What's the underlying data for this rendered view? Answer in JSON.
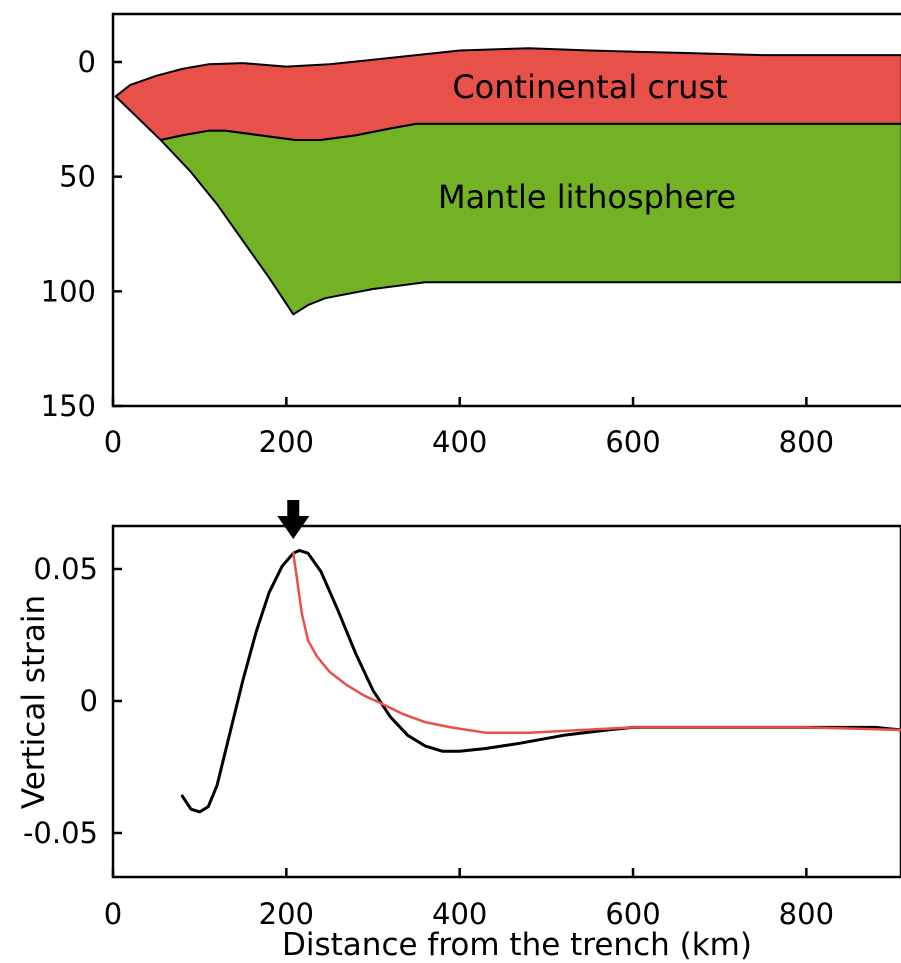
{
  "colors": {
    "crust": "#E8504A",
    "mantle": "#74B225",
    "black_curve": "#000000",
    "red_curve": "#E8504A",
    "axis": "#000000",
    "arrow": "#000000"
  },
  "chart_data": [
    {
      "type": "area",
      "xlabel": "",
      "ylabel": "",
      "xlim": [
        0,
        910
      ],
      "ylim": [
        150,
        -20
      ],
      "y_inverted": true,
      "x_ticks": [
        "0",
        "200",
        "400",
        "600",
        "800"
      ],
      "x_tick_values": [
        0,
        200,
        400,
        600,
        800
      ],
      "y_ticks": [
        "0",
        "50",
        "100",
        "150"
      ],
      "y_tick_values": [
        0,
        50,
        100,
        150
      ],
      "grid": false,
      "regions": [
        {
          "name": "Continental crust",
          "color_key": "crust",
          "top": [
            [
              3,
              15
            ],
            [
              20,
              10
            ],
            [
              50,
              6
            ],
            [
              80,
              3
            ],
            [
              110,
              1
            ],
            [
              150,
              0.5
            ],
            [
              200,
              2
            ],
            [
              250,
              1
            ],
            [
              300,
              -1
            ],
            [
              350,
              -3
            ],
            [
              400,
              -5
            ],
            [
              480,
              -6
            ],
            [
              550,
              -5
            ],
            [
              650,
              -4
            ],
            [
              750,
              -3
            ],
            [
              910,
              -3
            ]
          ],
          "bottom": [
            [
              910,
              27
            ],
            [
              800,
              27
            ],
            [
              600,
              27
            ],
            [
              400,
              27
            ],
            [
              350,
              27
            ],
            [
              320,
              29
            ],
            [
              280,
              32
            ],
            [
              240,
              34
            ],
            [
              210,
              34
            ],
            [
              170,
              32
            ],
            [
              130,
              30
            ],
            [
              110,
              30
            ],
            [
              80,
              32
            ],
            [
              55,
              34
            ],
            [
              3,
              15
            ]
          ]
        },
        {
          "name": "Mantle lithosphere",
          "color_key": "mantle",
          "top": [
            [
              55,
              34
            ],
            [
              80,
              32
            ],
            [
              110,
              30
            ],
            [
              130,
              30
            ],
            [
              170,
              32
            ],
            [
              210,
              34
            ],
            [
              240,
              34
            ],
            [
              280,
              32
            ],
            [
              320,
              29
            ],
            [
              350,
              27
            ],
            [
              400,
              27
            ],
            [
              600,
              27
            ],
            [
              800,
              27
            ],
            [
              910,
              27
            ]
          ],
          "bottom": [
            [
              910,
              96
            ],
            [
              700,
              96
            ],
            [
              500,
              96
            ],
            [
              360,
              96
            ],
            [
              300,
              99
            ],
            [
              245,
              103
            ],
            [
              225,
              106
            ],
            [
              208,
              110
            ],
            [
              180,
              94
            ],
            [
              150,
              78
            ],
            [
              120,
              62
            ],
            [
              90,
              48
            ],
            [
              55,
              34
            ]
          ]
        }
      ],
      "annotations": [
        "Continental crust",
        "Mantle lithosphere"
      ]
    },
    {
      "type": "line",
      "xlabel": "Distance from the trench (km)",
      "ylabel": "Vertical strain",
      "xlim": [
        0,
        910
      ],
      "ylim": [
        -0.066,
        0.067
      ],
      "x_ticks": [
        "0",
        "200",
        "400",
        "600",
        "800"
      ],
      "x_tick_values": [
        0,
        200,
        400,
        600,
        800
      ],
      "y_ticks": [
        "0.05",
        "0",
        "-0.05"
      ],
      "y_tick_values": [
        0.05,
        0,
        -0.05
      ],
      "grid": false,
      "arrow_marker_x": 208,
      "series": [
        {
          "color_key": "black_curve",
          "x": [
            80,
            90,
            100,
            110,
            120,
            135,
            150,
            165,
            180,
            195,
            208,
            215,
            225,
            240,
            260,
            280,
            300,
            320,
            340,
            360,
            380,
            400,
            430,
            470,
            520,
            570,
            600,
            700,
            800,
            850,
            880,
            910
          ],
          "y": [
            -0.036,
            -0.041,
            -0.042,
            -0.04,
            -0.032,
            -0.012,
            0.008,
            0.026,
            0.041,
            0.051,
            0.056,
            0.057,
            0.056,
            0.049,
            0.034,
            0.018,
            0.004,
            -0.006,
            -0.013,
            -0.017,
            -0.019,
            -0.019,
            -0.018,
            -0.016,
            -0.013,
            -0.011,
            -0.01,
            -0.01,
            -0.01,
            -0.01,
            -0.01,
            -0.011
          ]
        },
        {
          "color_key": "red_curve",
          "x": [
            208,
            212,
            218,
            225,
            235,
            250,
            270,
            290,
            310,
            335,
            360,
            390,
            430,
            480,
            540,
            600,
            700,
            800,
            910
          ],
          "y": [
            0.056,
            0.047,
            0.033,
            0.023,
            0.017,
            0.011,
            0.006,
            0.002,
            -0.001,
            -0.005,
            -0.008,
            -0.01,
            -0.012,
            -0.012,
            -0.011,
            -0.01,
            -0.01,
            -0.01,
            -0.011
          ]
        }
      ]
    }
  ]
}
